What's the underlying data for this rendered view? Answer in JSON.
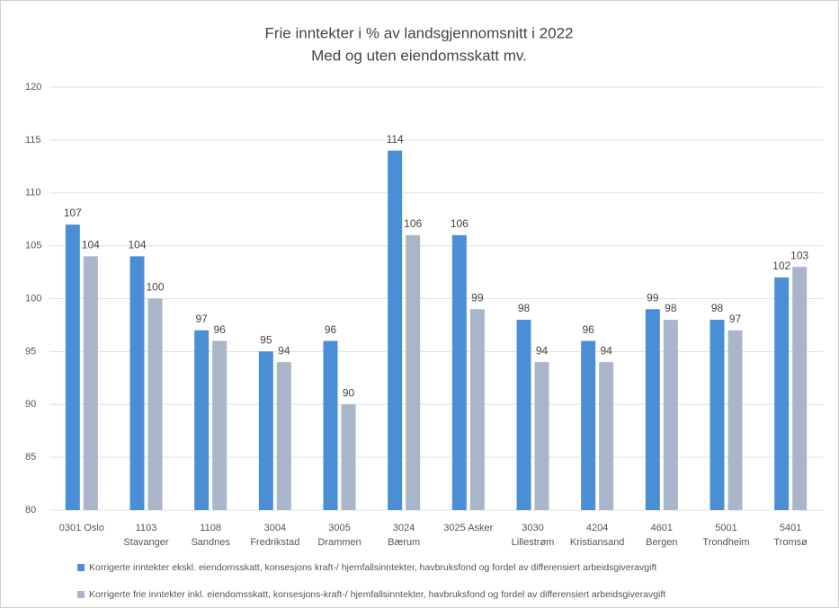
{
  "chart_data": {
    "type": "bar",
    "title": "Frie inntekter i % av landsgjennomsnitt  i 2022",
    "subtitle": "Med og uten eiendomsskatt mv.",
    "categories": [
      [
        "0301 Oslo"
      ],
      [
        "1103",
        "Stavanger"
      ],
      [
        "1108",
        "Sandnes"
      ],
      [
        "3004",
        "Fredrikstad"
      ],
      [
        "3005",
        "Drammen"
      ],
      [
        "3024",
        "Bærum"
      ],
      [
        "3025 Asker"
      ],
      [
        "3030",
        "Lillestrøm"
      ],
      [
        "4204",
        "Kristiansand"
      ],
      [
        "4601",
        "Bergen"
      ],
      [
        "5001",
        "Trondheim"
      ],
      [
        "5401",
        "Tromsø"
      ]
    ],
    "series": [
      {
        "name": "Korrigerte inntekter ekskl. eiendomsskatt, konsesjons kraft-/ hjemfallsinntekter, havbruksfond og fordel av differensiert arbeidsgiveravgift",
        "color": "#4a8fd6",
        "values": [
          107,
          104,
          97,
          95,
          96,
          114,
          106,
          98,
          96,
          99,
          98,
          102
        ]
      },
      {
        "name": "Korrigerte frie inntekter inkl. eiendomsskatt, konsesjons-kraft-/ hjemfallsinntekter, havbruksfond og fordel av differensiert arbeidsgiveravgift",
        "color": "#a9b5c8",
        "values": [
          104,
          100,
          96,
          94,
          90,
          106,
          99,
          94,
          94,
          98,
          97,
          103
        ]
      }
    ],
    "ylim": [
      80,
      120
    ],
    "yticks": [
      80,
      85,
      90,
      95,
      100,
      105,
      110,
      115,
      120
    ],
    "grid": true
  }
}
